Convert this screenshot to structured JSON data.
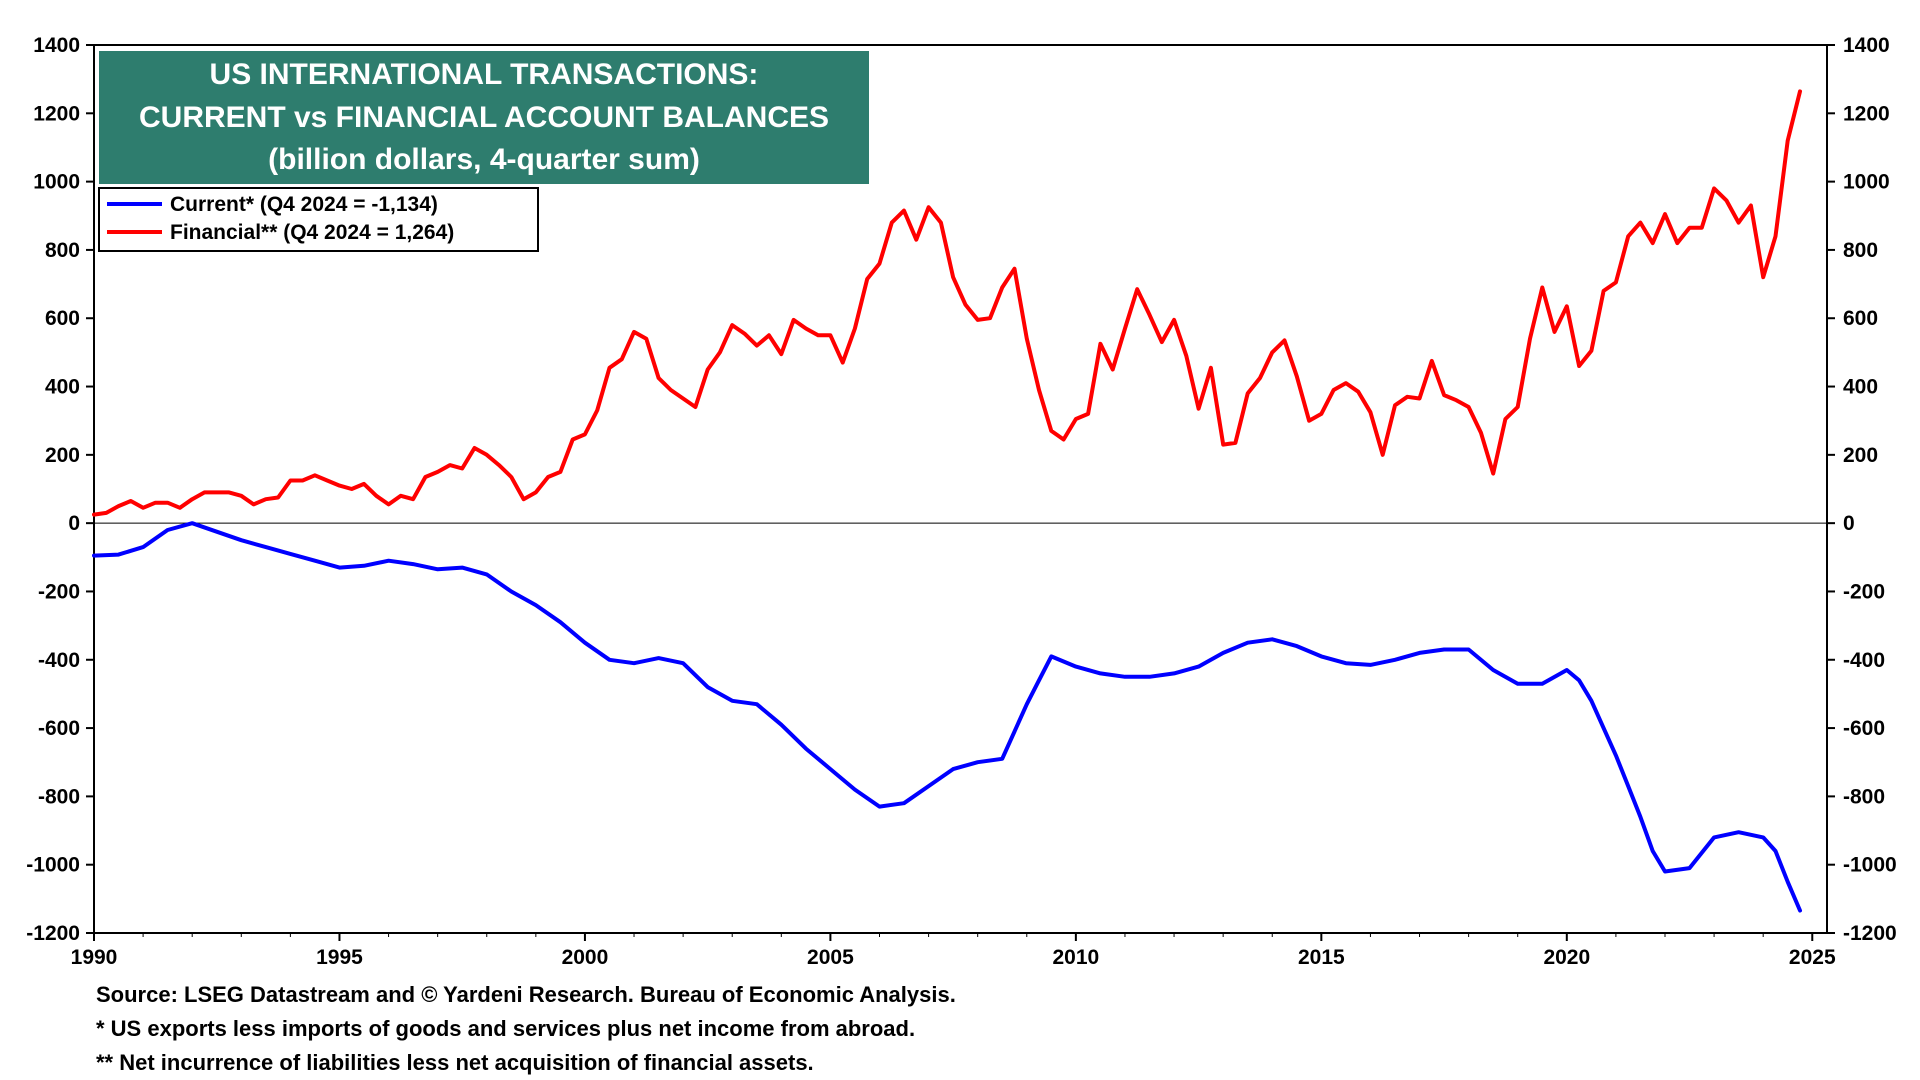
{
  "chart_data": {
    "type": "line",
    "title_lines": [
      "US INTERNATIONAL TRANSACTIONS:",
      "CURRENT vs FINANCIAL ACCOUNT BALANCES",
      "(billion dollars, 4-quarter sum)"
    ],
    "title_bg": "#2e7d6e",
    "ylim": [
      -1200,
      1400
    ],
    "yticks": [
      1400,
      1200,
      1000,
      800,
      600,
      400,
      200,
      0,
      -200,
      -400,
      -600,
      -800,
      -1000,
      -1200
    ],
    "xlim": [
      1990,
      2025.3
    ],
    "xticks": [
      1990,
      1995,
      2000,
      2005,
      2010,
      2015,
      2020,
      2025
    ],
    "legend_position": "top-left",
    "series": [
      {
        "name": "Current* (Q4 2024 = -1,134)",
        "color": "#0000ff",
        "x": [
          1990,
          1990.5,
          1991,
          1991.5,
          1992,
          1992.5,
          1993,
          1993.5,
          1994,
          1994.5,
          1995,
          1995.5,
          1996,
          1996.5,
          1997,
          1997.5,
          1998,
          1998.5,
          1999,
          1999.5,
          2000,
          2000.5,
          2001,
          2001.5,
          2002,
          2002.5,
          2003,
          2003.5,
          2004,
          2004.5,
          2005,
          2005.5,
          2006,
          2006.5,
          2007,
          2007.5,
          2008,
          2008.5,
          2009,
          2009.25,
          2009.5,
          2010,
          2010.5,
          2011,
          2011.5,
          2012,
          2012.5,
          2013,
          2013.5,
          2014,
          2014.5,
          2015,
          2015.5,
          2016,
          2016.5,
          2017,
          2017.5,
          2018,
          2018.5,
          2019,
          2019.5,
          2020,
          2020.25,
          2020.5,
          2020.75,
          2021,
          2021.25,
          2021.5,
          2021.75,
          2022,
          2022.5,
          2023,
          2023.5,
          2024,
          2024.25,
          2024.5,
          2024.75
        ],
        "values": [
          -95,
          -92,
          -70,
          -20,
          0,
          -25,
          -50,
          -70,
          -90,
          -110,
          -130,
          -125,
          -110,
          -120,
          -135,
          -130,
          -150,
          -200,
          -240,
          -290,
          -350,
          -400,
          -410,
          -395,
          -410,
          -480,
          -520,
          -530,
          -590,
          -660,
          -720,
          -780,
          -830,
          -820,
          -770,
          -720,
          -700,
          -690,
          -530,
          -460,
          -390,
          -420,
          -440,
          -450,
          -450,
          -440,
          -420,
          -380,
          -350,
          -340,
          -360,
          -390,
          -410,
          -415,
          -400,
          -380,
          -370,
          -370,
          -430,
          -470,
          -470,
          -430,
          -460,
          -520,
          -600,
          -680,
          -770,
          -860,
          -960,
          -1020,
          -1010,
          -920,
          -905,
          -920,
          -960,
          -1050,
          -1134
        ]
      },
      {
        "name": "Financial** (Q4 2024 = 1,264)",
        "color": "#ff0000",
        "x": [
          1990,
          1990.25,
          1990.5,
          1990.75,
          1991,
          1991.25,
          1991.5,
          1991.75,
          1992,
          1992.25,
          1992.5,
          1992.75,
          1993,
          1993.25,
          1993.5,
          1993.75,
          1994,
          1994.25,
          1994.5,
          1994.75,
          1995,
          1995.25,
          1995.5,
          1995.75,
          1996,
          1996.25,
          1996.5,
          1996.75,
          1997,
          1997.25,
          1997.5,
          1997.75,
          1998,
          1998.25,
          1998.5,
          1998.75,
          1999,
          1999.25,
          1999.5,
          1999.75,
          2000,
          2000.25,
          2000.5,
          2000.75,
          2001,
          2001.25,
          2001.5,
          2001.75,
          2002,
          2002.25,
          2002.5,
          2002.75,
          2003,
          2003.25,
          2003.5,
          2003.75,
          2004,
          2004.25,
          2004.5,
          2004.75,
          2005,
          2005.25,
          2005.5,
          2005.75,
          2006,
          2006.25,
          2006.5,
          2006.75,
          2007,
          2007.25,
          2007.5,
          2007.75,
          2008,
          2008.25,
          2008.5,
          2008.75,
          2009,
          2009.25,
          2009.5,
          2009.75,
          2010,
          2010.25,
          2010.5,
          2010.75,
          2011,
          2011.25,
          2011.5,
          2011.75,
          2012,
          2012.25,
          2012.5,
          2012.75,
          2013,
          2013.25,
          2013.5,
          2013.75,
          2014,
          2014.25,
          2014.5,
          2014.75,
          2015,
          2015.25,
          2015.5,
          2015.75,
          2016,
          2016.25,
          2016.5,
          2016.75,
          2017,
          2017.25,
          2017.5,
          2017.75,
          2018,
          2018.25,
          2018.5,
          2018.75,
          2019,
          2019.25,
          2019.5,
          2019.75,
          2020,
          2020.25,
          2020.5,
          2020.75,
          2021,
          2021.25,
          2021.5,
          2021.75,
          2022,
          2022.25,
          2022.5,
          2022.75,
          2023,
          2023.25,
          2023.5,
          2023.75,
          2024,
          2024.25,
          2024.5,
          2024.75
        ],
        "values": [
          25,
          30,
          50,
          65,
          45,
          60,
          60,
          45,
          70,
          90,
          90,
          90,
          80,
          55,
          70,
          75,
          125,
          125,
          140,
          125,
          110,
          100,
          115,
          80,
          55,
          80,
          70,
          135,
          150,
          170,
          160,
          220,
          200,
          170,
          135,
          70,
          90,
          135,
          150,
          245,
          260,
          330,
          455,
          480,
          560,
          540,
          425,
          390,
          365,
          340,
          450,
          500,
          580,
          555,
          520,
          550,
          495,
          595,
          570,
          550,
          550,
          470,
          570,
          715,
          760,
          880,
          915,
          830,
          925,
          880,
          720,
          640,
          595,
          600,
          690,
          745,
          540,
          390,
          270,
          245,
          305,
          320,
          525,
          450,
          570,
          685,
          610,
          530,
          595,
          490,
          335,
          455,
          230,
          235,
          380,
          425,
          500,
          535,
          430,
          300,
          320,
          390,
          410,
          385,
          325,
          200,
          345,
          370,
          365,
          475,
          375,
          360,
          340,
          265,
          145,
          305,
          340,
          540,
          690,
          560,
          635,
          460,
          505,
          680,
          705,
          840,
          880,
          820,
          905,
          820,
          865,
          865,
          980,
          945,
          880,
          930,
          720,
          840,
          1120,
          1264
        ]
      }
    ]
  },
  "footnotes": {
    "source": "Source: LSEG Datastream and © Yardeni Research. Bureau of Economic Analysis.",
    "note1": "* US exports less imports of goods and services plus net income from abroad.",
    "note2": "** Net incurrence of liabilities less net acquisition of financial assets."
  }
}
